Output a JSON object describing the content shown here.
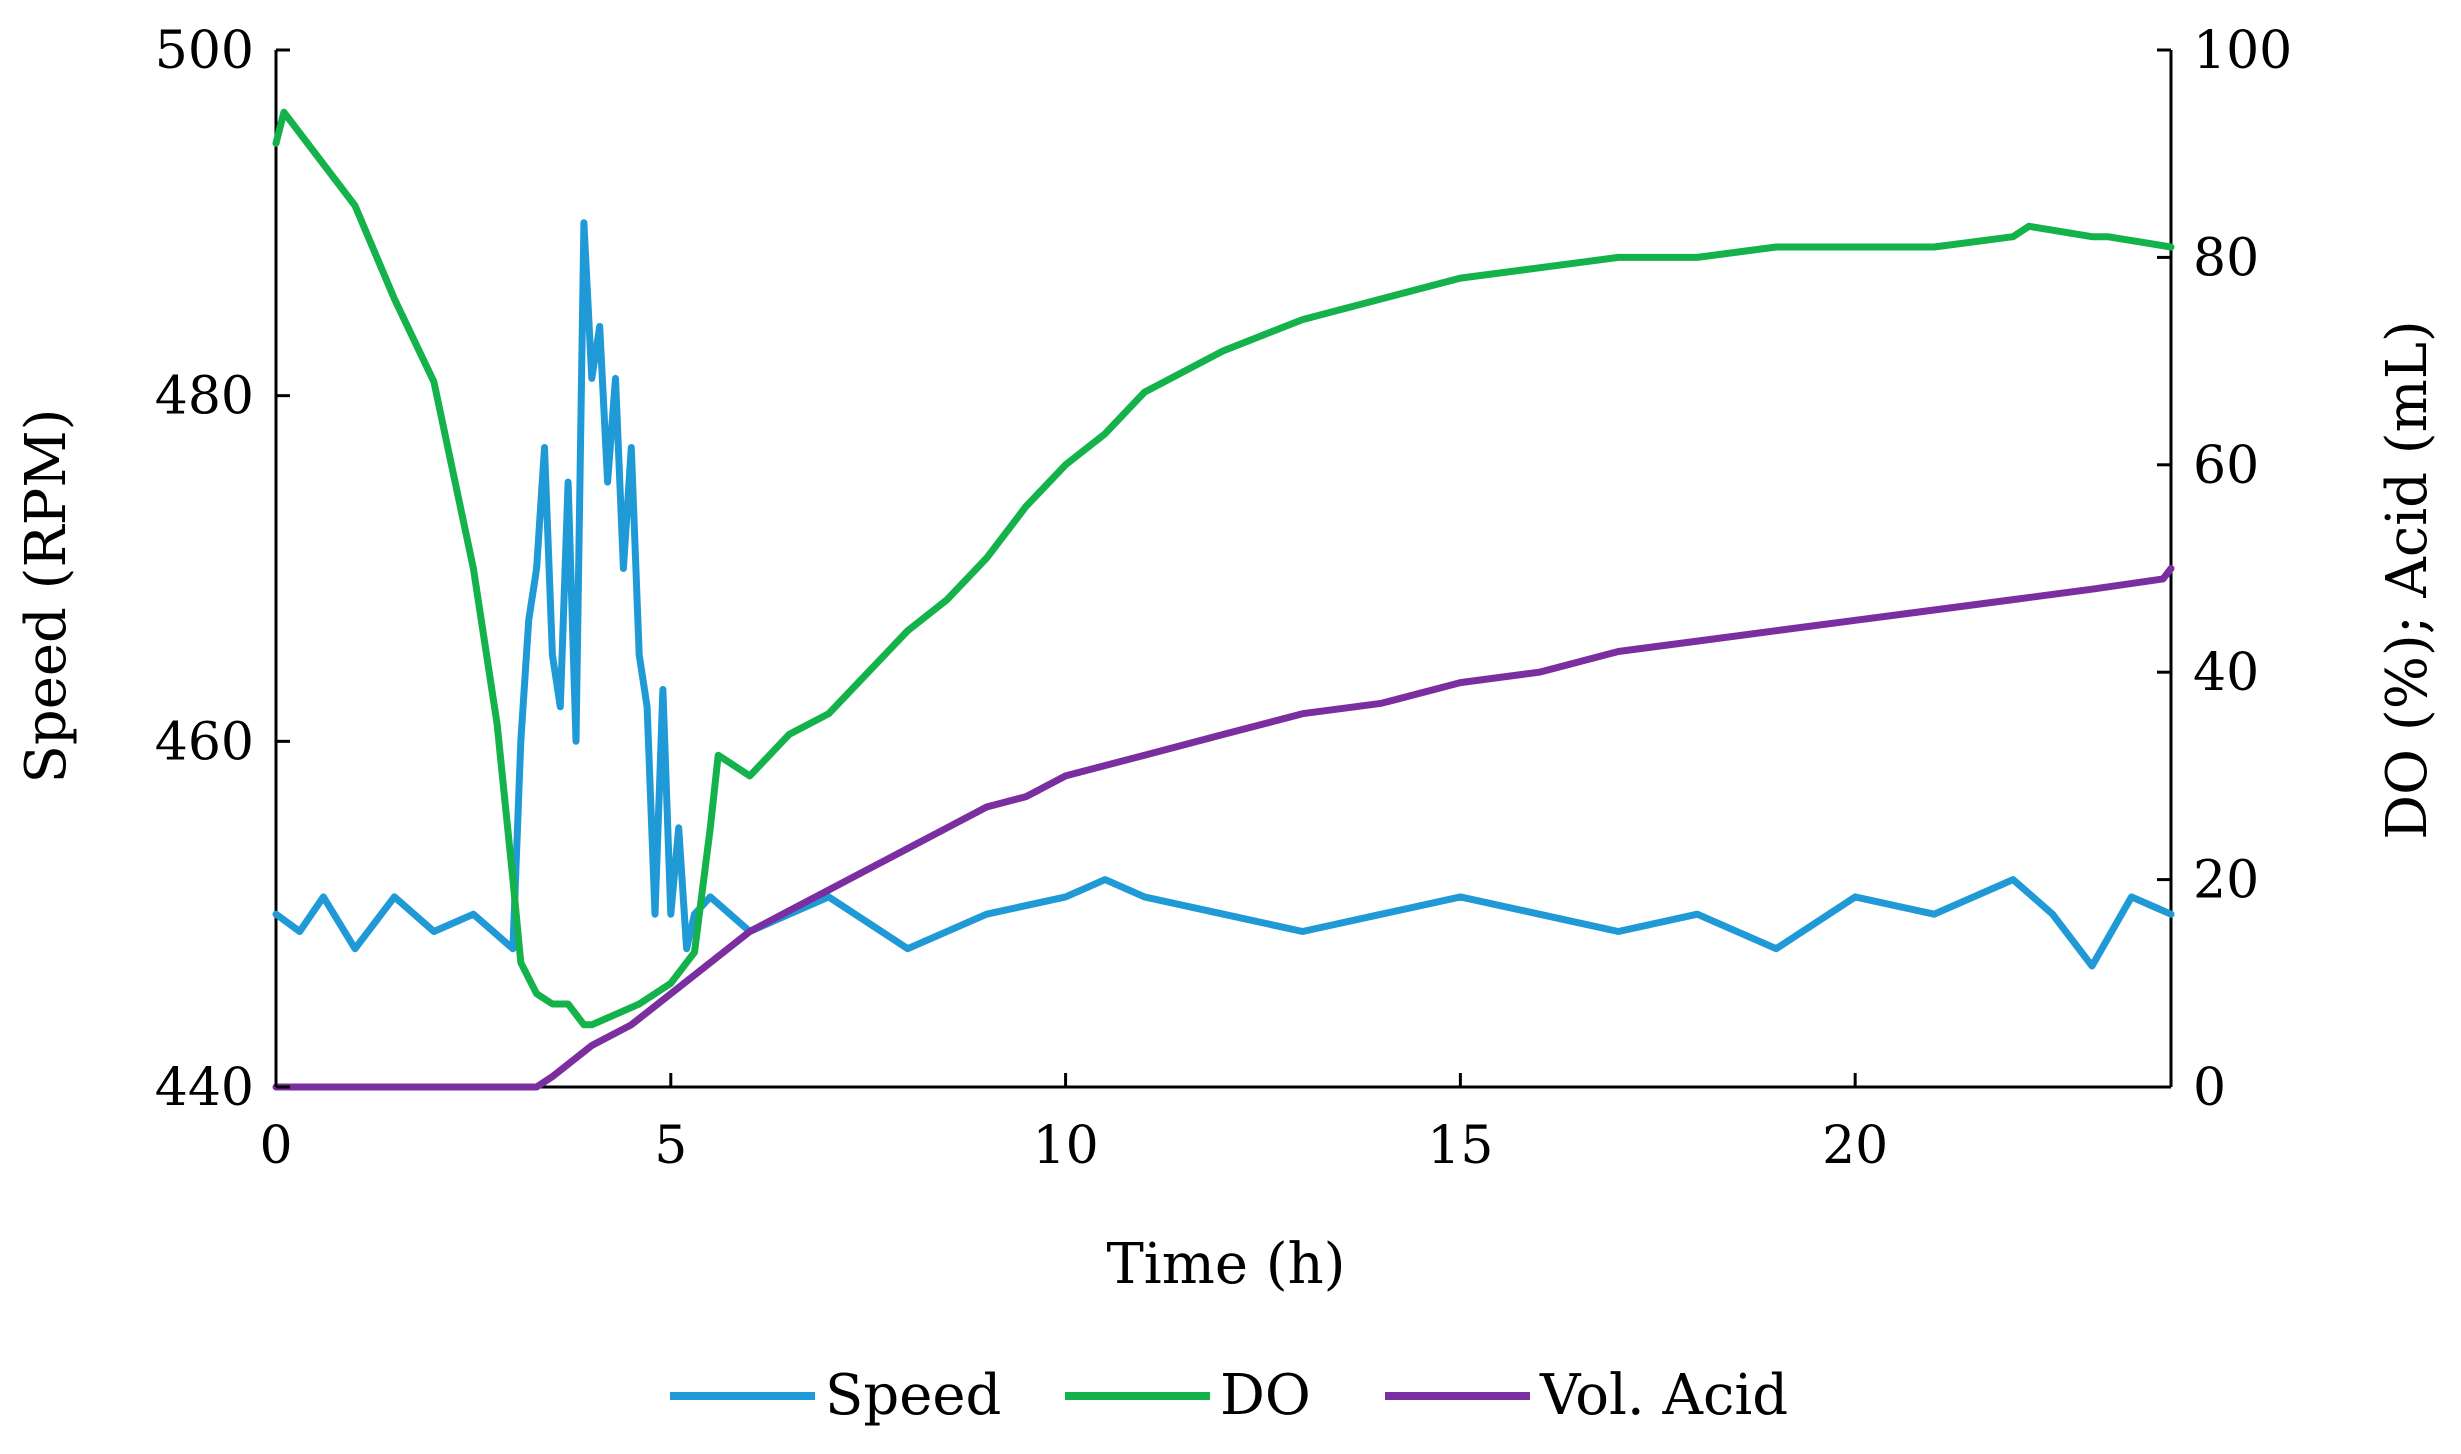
{
  "chart_data": {
    "type": "line",
    "title": "",
    "xlabel": "Time (h)",
    "ylabel_left": "Speed (RPM)",
    "ylabel_right": "DO (%); Acid (mL)",
    "xlim": [
      0,
      24
    ],
    "ylim_left": [
      440,
      500
    ],
    "ylim_right": [
      0,
      100
    ],
    "xticks": [
      0,
      5,
      10,
      15,
      20
    ],
    "yticks_left": [
      440,
      460,
      480,
      500
    ],
    "yticks_right": [
      0,
      20,
      40,
      60,
      80,
      100
    ],
    "grid": false,
    "legend_position": "bottom-center",
    "series": [
      {
        "name": "Speed",
        "axis": "left",
        "color": "#1f9ad6",
        "x": [
          0,
          0.3,
          0.6,
          1.0,
          1.5,
          2.0,
          2.5,
          3.0,
          3.1,
          3.2,
          3.3,
          3.4,
          3.5,
          3.6,
          3.7,
          3.8,
          3.9,
          4.0,
          4.1,
          4.2,
          4.3,
          4.4,
          4.5,
          4.6,
          4.7,
          4.8,
          4.9,
          5.0,
          5.1,
          5.2,
          5.3,
          5.5,
          6.0,
          6.5,
          7.0,
          8.0,
          9.0,
          10.0,
          10.5,
          11.0,
          12.0,
          13.0,
          14.0,
          15.0,
          16.0,
          17.0,
          18.0,
          19.0,
          20.0,
          21.0,
          22.0,
          22.5,
          23.0,
          23.5,
          24.0
        ],
        "values": [
          450,
          449,
          451,
          448,
          451,
          449,
          450,
          448,
          460,
          467,
          470,
          477,
          465,
          462,
          475,
          460,
          490,
          481,
          484,
          475,
          481,
          470,
          477,
          465,
          462,
          450,
          463,
          450,
          455,
          448,
          450,
          451,
          449,
          450,
          451,
          448,
          450,
          451,
          452,
          451,
          450,
          449,
          450,
          451,
          450,
          449,
          450,
          448,
          451,
          450,
          452,
          450,
          447,
          451,
          450
        ]
      },
      {
        "name": "DO",
        "axis": "right",
        "color": "#14b24a",
        "x": [
          0,
          0.1,
          0.5,
          1.0,
          1.5,
          2.0,
          2.5,
          2.8,
          3.0,
          3.1,
          3.3,
          3.5,
          3.7,
          3.9,
          4.0,
          4.3,
          4.6,
          5.0,
          5.3,
          5.5,
          5.6,
          6.0,
          6.5,
          7.0,
          7.5,
          8.0,
          8.5,
          9.0,
          9.5,
          10.0,
          10.5,
          11.0,
          12.0,
          13.0,
          14.0,
          15.0,
          16.0,
          17.0,
          18.0,
          19.0,
          20.0,
          21.0,
          22.0,
          22.2,
          23.0,
          23.2,
          24.0
        ],
        "values": [
          91,
          94,
          90,
          85,
          76,
          68,
          50,
          35,
          20,
          12,
          9,
          8,
          8,
          6,
          6,
          7,
          8,
          10,
          13,
          25,
          32,
          30,
          34,
          36,
          40,
          44,
          47,
          51,
          56,
          60,
          63,
          67,
          71,
          74,
          76,
          78,
          79,
          80,
          80,
          81,
          81,
          81,
          82,
          83,
          82,
          82,
          81
        ]
      },
      {
        "name": "Vol. Acid",
        "axis": "right",
        "color": "#7b2ea0",
        "x": [
          0,
          3.3,
          3.5,
          4.0,
          4.5,
          5.0,
          5.5,
          6.0,
          6.5,
          7.0,
          7.5,
          8.0,
          8.5,
          9.0,
          9.5,
          10.0,
          11.0,
          12.0,
          13.0,
          14.0,
          15.0,
          16.0,
          17.0,
          18.0,
          19.0,
          20.0,
          21.0,
          22.0,
          23.0,
          23.9,
          24.0
        ],
        "values": [
          0,
          0,
          1,
          4,
          6,
          9,
          12,
          15,
          17,
          19,
          21,
          23,
          25,
          27,
          28,
          30,
          32,
          34,
          36,
          37,
          39,
          40,
          42,
          43,
          44,
          45,
          46,
          47,
          48,
          49,
          50
        ]
      }
    ]
  }
}
